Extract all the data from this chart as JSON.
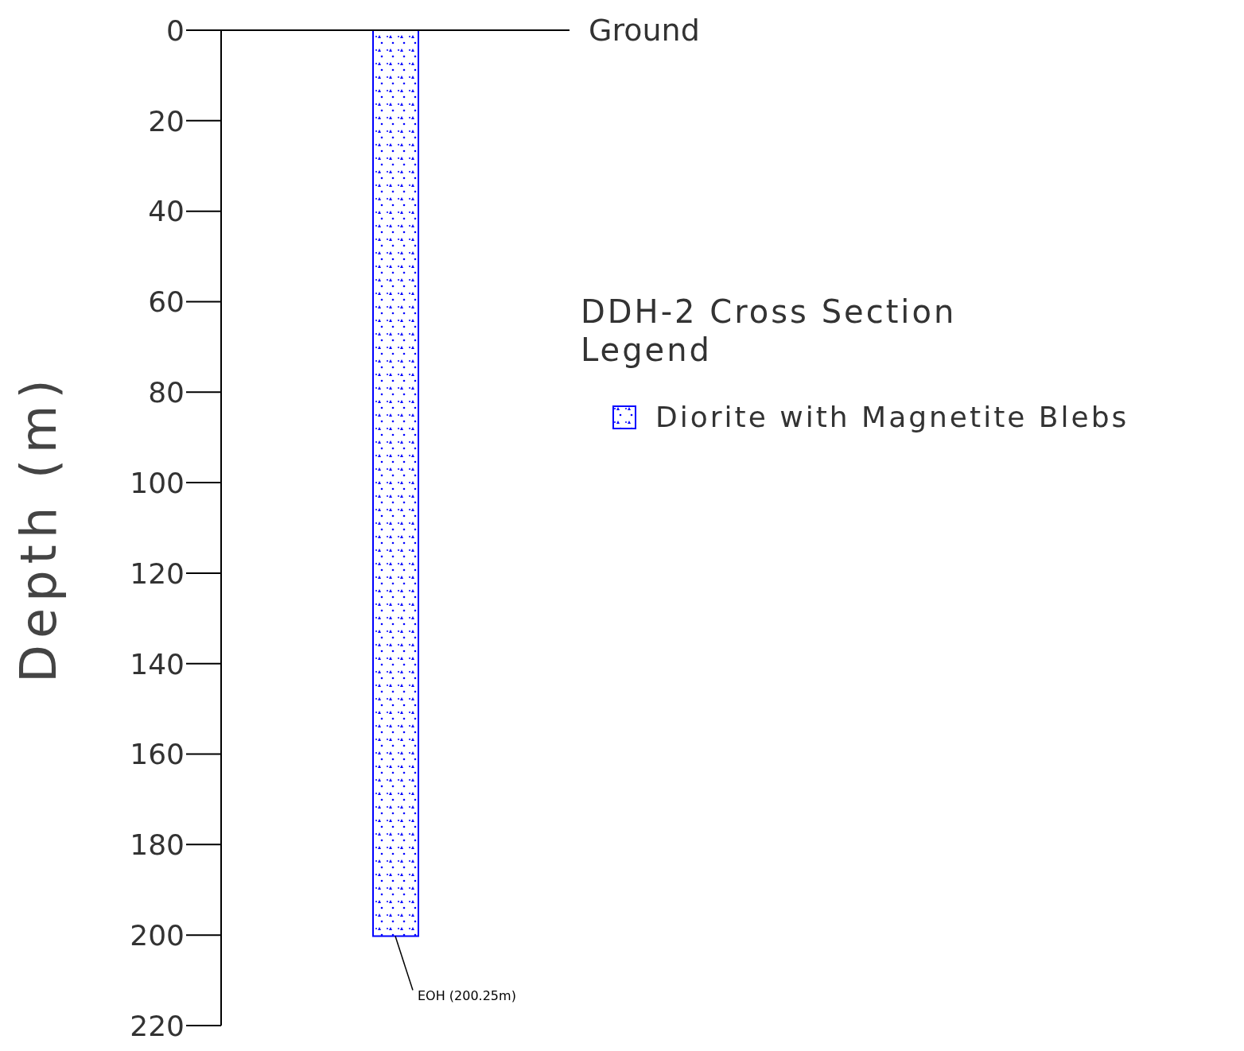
{
  "chart_data": {
    "type": "bar",
    "title": "DDH-2 Cross Section",
    "legend_title": "Legend",
    "ylabel": "Depth (m)",
    "categories": [
      null
    ],
    "series": [
      {
        "name": "Diorite with Magnetite Blebs",
        "color": "#0000ff",
        "values": [
          200.25
        ],
        "base": [
          0
        ]
      }
    ],
    "ylim": [
      220,
      0
    ],
    "yticks": [
      0,
      20,
      40,
      60,
      80,
      100,
      120,
      140,
      160,
      180,
      200,
      220
    ],
    "ref_lines": [
      {
        "axis": "y",
        "value": 0,
        "label": "Ground"
      }
    ],
    "annotations": [
      "EOH (200.25m)"
    ],
    "tick_labels": "y",
    "legend": "right"
  }
}
